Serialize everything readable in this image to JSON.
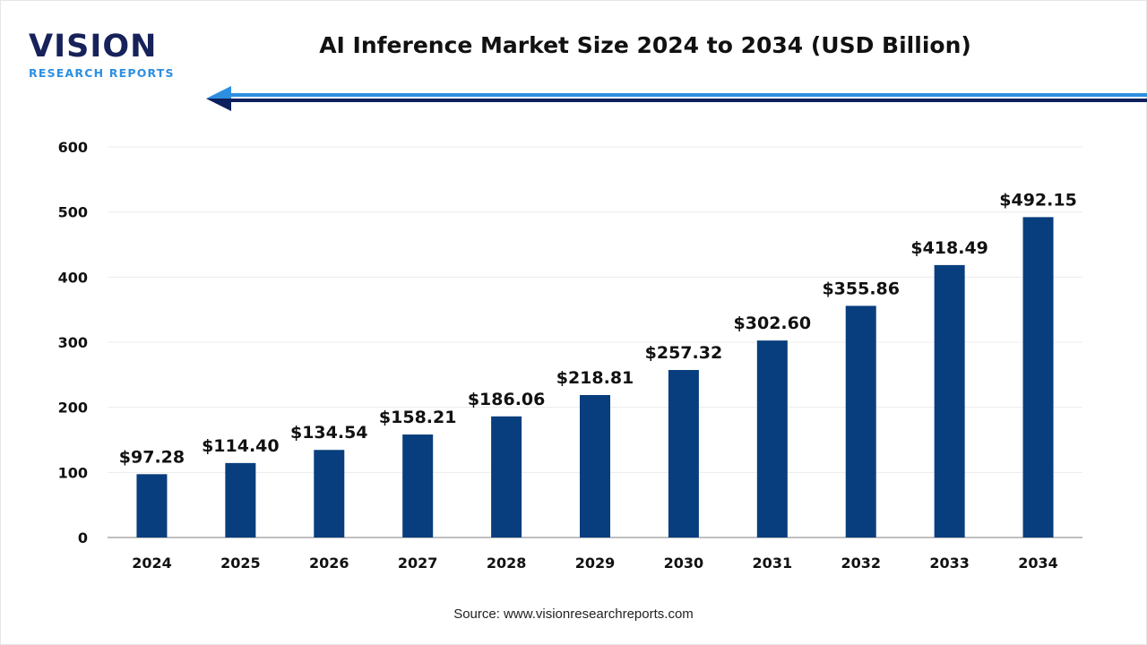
{
  "logo": {
    "main": "VISION",
    "sub": "RESEARCH REPORTS"
  },
  "source": "Source: www.visionresearchreports.com",
  "colors": {
    "bar": "#083e7d",
    "arrow_light": "#2d8fe0",
    "arrow_dark": "#0d1f5c"
  },
  "chart_data": {
    "type": "bar",
    "title": "AI Inference Market Size 2024 to 2034 (USD Billion)",
    "xlabel": "",
    "ylabel": "",
    "categories": [
      "2024",
      "2025",
      "2026",
      "2027",
      "2028",
      "2029",
      "2030",
      "2031",
      "2032",
      "2033",
      "2034"
    ],
    "values": [
      97.28,
      114.4,
      134.54,
      158.21,
      186.06,
      218.81,
      257.32,
      302.6,
      355.86,
      418.49,
      492.15
    ],
    "data_labels": [
      "$97.28",
      "$114.40",
      "$134.54",
      "$158.21",
      "$186.06",
      "$218.81",
      "$257.32",
      "$302.60",
      "$355.86",
      "$418.49",
      "$492.15"
    ],
    "ylim": [
      0,
      600
    ],
    "yticks": [
      0,
      100,
      200,
      300,
      400,
      500,
      600
    ],
    "grid": true,
    "legend": "none"
  }
}
